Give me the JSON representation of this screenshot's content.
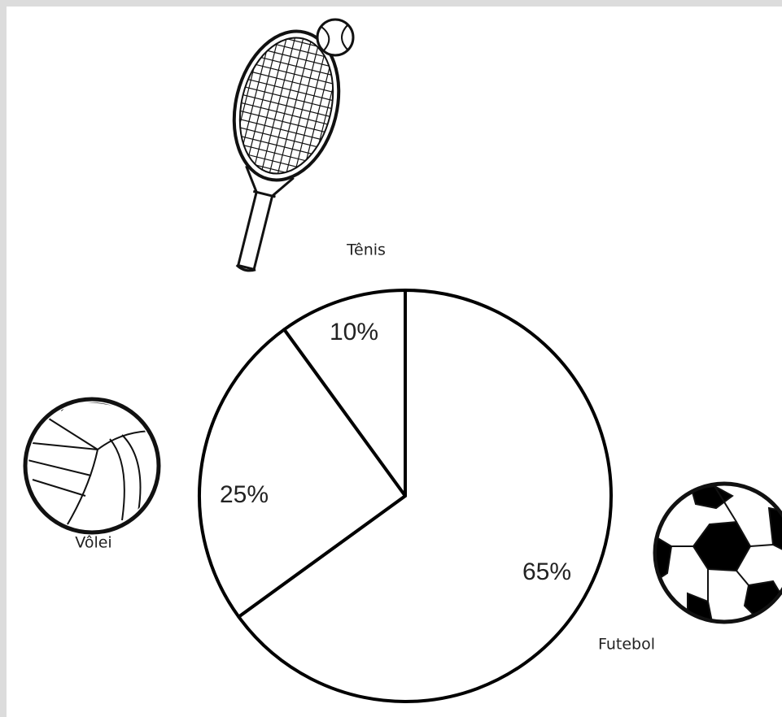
{
  "chart_data": {
    "type": "pie",
    "categories": [
      "Futebol",
      "Vôlei",
      "Tênis"
    ],
    "values": [
      65,
      25,
      10
    ],
    "value_labels": [
      "65%",
      "25%",
      "10%"
    ],
    "color": "#ffffff"
  }
}
